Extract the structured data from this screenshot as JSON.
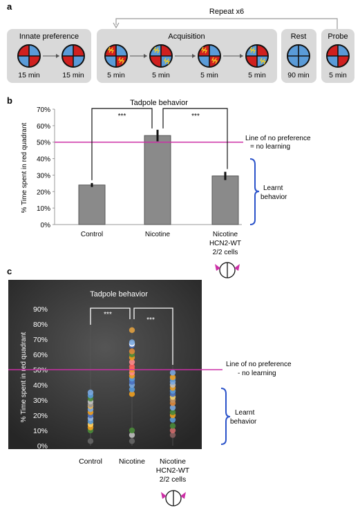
{
  "panel_a": {
    "label": "a",
    "repeat_text": "Repeat x6",
    "groups": [
      {
        "title": "Innate preference",
        "circles": [
          {
            "pattern": "red-left",
            "time": "15 min",
            "bolts": false
          },
          {
            "pattern": "red-right",
            "time": "15 min",
            "bolts": false
          }
        ]
      },
      {
        "title": "Acquisition",
        "circles": [
          {
            "pattern": "red-left",
            "time": "5 min",
            "bolts": true
          },
          {
            "pattern": "red-right",
            "time": "5 min",
            "bolts": true
          },
          {
            "pattern": "red-left",
            "time": "5 min",
            "bolts": true
          },
          {
            "pattern": "red-right",
            "time": "5 min",
            "bolts": true
          }
        ]
      },
      {
        "title": "Rest",
        "circles": [
          {
            "pattern": "all-blue",
            "time": "90 min",
            "bolts": false
          }
        ]
      },
      {
        "title": "Probe",
        "circles": [
          {
            "pattern": "red-left",
            "time": "5 min",
            "bolts": false
          }
        ]
      }
    ]
  },
  "colors": {
    "red": "#d0201f",
    "blue": "#5a9bd8",
    "bar": "#8a8a8a",
    "magenta": "#cc2fa6",
    "brace": "#2a52c9",
    "panel_bg": "#d9d9d9",
    "dark_bg": "#3a3a3a"
  },
  "panel_b": {
    "label": "b",
    "line_label_1": "Line of no preference",
    "line_label_2": "= no learning",
    "brace_label_1": "Learnt",
    "brace_label_2": "behavior",
    "sig_labels": [
      "***",
      "***"
    ]
  },
  "panel_c": {
    "label": "c",
    "line_label_1": "Line of no preference",
    "line_label_2": "- no learning",
    "brace_label_1": "Learnt",
    "brace_label_2": "behavior",
    "sig_labels": [
      "***",
      "***"
    ]
  },
  "chart_data": [
    {
      "type": "bar",
      "title": "Tadpole behavior",
      "ylabel": "% Time spent in red quadrant",
      "ylim": [
        0,
        70
      ],
      "yticks": [
        "0%",
        "10%",
        "20%",
        "30%",
        "40%",
        "50%",
        "60%",
        "70%"
      ],
      "categories": [
        "Control",
        "Nicotine",
        "Nicotine HCN2-WT 2/2 cells"
      ],
      "category_lines": [
        [
          "Control"
        ],
        [
          "Nicotine"
        ],
        [
          "Nicotine",
          "HCN2-WT",
          "2/2 cells"
        ]
      ],
      "values": [
        24,
        54,
        29.5
      ],
      "errors": [
        1.2,
        3.5,
        2.5
      ],
      "reference_line": 50
    },
    {
      "type": "scatter",
      "title": "Tadpole behavior",
      "ylabel": "% Time spent in red quadrant",
      "ylim": [
        0,
        90
      ],
      "yticks": [
        "0%",
        "10%",
        "20%",
        "30%",
        "40%",
        "50%",
        "60%",
        "70%",
        "80%",
        "90%"
      ],
      "categories": [
        "Control",
        "Nicotine",
        "Nicotine HCN2-WT 2/2 cells"
      ],
      "category_lines": [
        [
          "Control"
        ],
        [
          "Nicotine"
        ],
        [
          "Nicotine",
          "HCN2-WT",
          "2/2 cells"
        ]
      ],
      "reference_line": 50,
      "points": [
        {
          "values": [
            3,
            10,
            12,
            14,
            16,
            18,
            20,
            22,
            24,
            26,
            27,
            29,
            31,
            33,
            35
          ],
          "colors": [
            "#666666",
            "#4a8a3a",
            "#f0a020",
            "#ffd060",
            "#5a9bd8",
            "#9ab8e0",
            "#4a70c0",
            "#f0a020",
            "#7aa8e0",
            "#f5b84a",
            "#9a9a9a",
            "#c0c0c0",
            "#4a8a3a",
            "#5a9bd8",
            "#7aa8e0"
          ]
        },
        {
          "values": [
            3,
            7,
            10,
            34,
            37,
            40,
            42,
            44,
            46,
            48,
            50,
            52,
            55,
            58,
            60,
            62,
            66,
            67,
            68,
            76
          ],
          "colors": [
            "#666666",
            "#c0c0c0",
            "#4a8a3a",
            "#f0a020",
            "#5a9bd8",
            "#7aa8e0",
            "#4a70c0",
            "#5a9bd8",
            "#f0a020",
            "#ff8a8a",
            "#f0a020",
            "#ff6060",
            "#ff8a8a",
            "#f0a020",
            "#4a8a3a",
            "#e08a3a",
            "#4a70c0",
            "#ffffff",
            "#7aa8e0",
            "#e0a040"
          ]
        },
        {
          "values": [
            7,
            10,
            13,
            17,
            20,
            22,
            25,
            28,
            30,
            32,
            34,
            36,
            38,
            40,
            42,
            44,
            45,
            48
          ],
          "colors": [
            "#8a6060",
            "#d06a6a",
            "#4a8a3a",
            "#5a9bd8",
            "#f0a020",
            "#4a8a3a",
            "#7aa8e0",
            "#e08a3a",
            "#c09060",
            "#f0d070",
            "#4a70c0",
            "#5a9bd8",
            "#f0a020",
            "#c0c0c0",
            "#7aa8e0",
            "#5a9bd8",
            "#f0a020",
            "#7aa8e0"
          ]
        }
      ]
    }
  ]
}
